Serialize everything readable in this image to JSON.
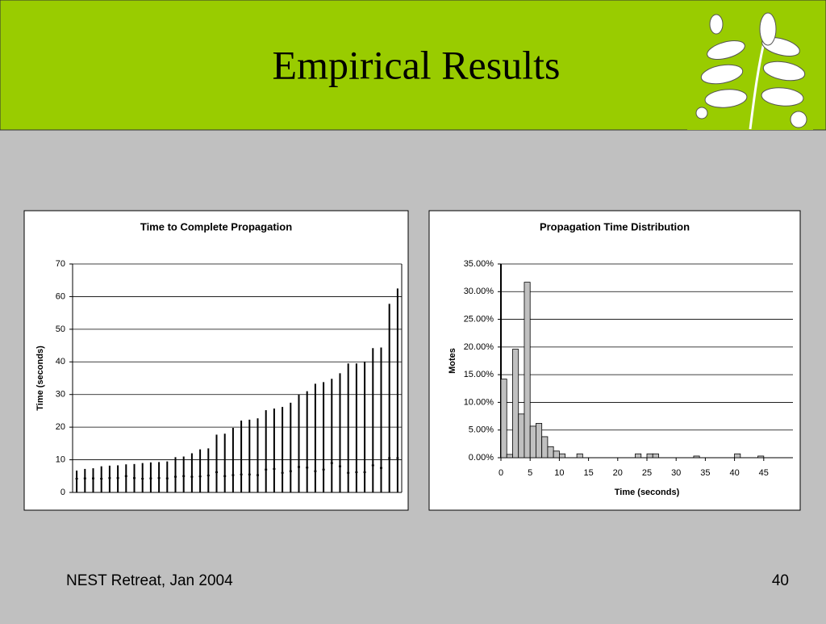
{
  "header": {
    "title": "Empirical Results"
  },
  "footer": {
    "left": "NEST Retreat, Jan 2004",
    "right": "40"
  },
  "chart_data": [
    {
      "type": "bar",
      "title": "Time to Complete Propagation",
      "y_label": "Time (seconds)",
      "ylim": [
        0,
        70
      ],
      "yticks": [
        0,
        10,
        20,
        30,
        40,
        50,
        60,
        70
      ],
      "grid": true,
      "series": [
        {
          "color": "#000000",
          "style": "line",
          "values": [
            6.7,
            7.2,
            7.4,
            8,
            8.2,
            8.3,
            8.6,
            8.7,
            9,
            9.2,
            9.3,
            9.5,
            10.8,
            11,
            12,
            13.2,
            13.5,
            17.7,
            18,
            19.8,
            22,
            22.3,
            22.7,
            25.2,
            25.7,
            26.2,
            27.5,
            30,
            31,
            33.3,
            33.8,
            34.8,
            36.5,
            39.5,
            39.5,
            40,
            44.2,
            44.4,
            57.8,
            62.5
          ]
        },
        {
          "color": "#000000",
          "style": "dash",
          "values": [
            4.2,
            4.3,
            4.3,
            4.2,
            4.4,
            4.4,
            5,
            4.4,
            4.2,
            4.3,
            4.4,
            4.3,
            4.8,
            5,
            4.8,
            4.9,
            5.2,
            6.2,
            5,
            5.3,
            5.5,
            5.5,
            5.3,
            7,
            7.2,
            6,
            6.5,
            7.8,
            7.6,
            6.5,
            7,
            9,
            8,
            6,
            6.2,
            6.2,
            8.3,
            7.5,
            10.5,
            10.5
          ]
        }
      ]
    },
    {
      "type": "histogram",
      "title": "Propagation Time Distribution",
      "x_label": "Time (seconds)",
      "y_label": "Motes",
      "color": "#c0c0c0",
      "xlim": [
        0,
        50
      ],
      "xticks": [
        0,
        5,
        10,
        15,
        20,
        25,
        30,
        35,
        40,
        45
      ],
      "ylim": [
        0,
        35
      ],
      "yticks": [
        {
          "value": 0,
          "label": "0.00%"
        },
        {
          "value": 5,
          "label": "5.00%"
        },
        {
          "value": 10,
          "label": "10.00%"
        },
        {
          "value": 15,
          "label": "15.00%"
        },
        {
          "value": 20,
          "label": "20.00%"
        },
        {
          "value": 25,
          "label": "25.00%"
        },
        {
          "value": 30,
          "label": "30.00%"
        },
        {
          "value": 35,
          "label": "35.00%"
        }
      ],
      "grid": true,
      "bins": [
        0,
        1,
        2,
        3,
        4,
        5,
        6,
        7,
        8,
        9,
        10,
        11,
        12,
        13,
        14,
        15,
        16,
        17,
        18,
        19,
        20,
        21,
        22,
        23,
        24,
        25,
        26,
        27,
        28,
        29,
        30,
        31,
        32,
        33,
        34,
        35,
        36,
        37,
        38,
        39,
        40,
        41,
        42,
        43,
        44,
        45,
        46,
        47,
        48,
        49,
        50
      ],
      "values": [
        14.2,
        0.6,
        19.6,
        7.9,
        31.7,
        5.7,
        6.2,
        3.8,
        2.0,
        1.2,
        0.7,
        0,
        0,
        0.7,
        0,
        0,
        0,
        0,
        0,
        0,
        0,
        0,
        0,
        0.7,
        0,
        0.7,
        0.7,
        0,
        0,
        0,
        0,
        0,
        0,
        0.3,
        0,
        0,
        0,
        0,
        0,
        0,
        0.7,
        0,
        0,
        0,
        0.3,
        0,
        0,
        0,
        0,
        0
      ]
    }
  ]
}
